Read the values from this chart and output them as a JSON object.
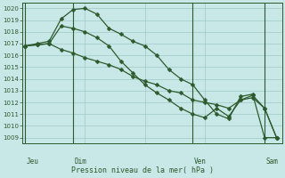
{
  "bg_color": "#c8e8e8",
  "grid_color": "#a0c8c8",
  "line_color": "#2d5a2d",
  "xlabel": "Pression niveau de la mer( hPa )",
  "ylim": [
    1008.5,
    1020.5
  ],
  "yticks": [
    1009,
    1010,
    1011,
    1012,
    1013,
    1014,
    1015,
    1016,
    1017,
    1018,
    1019,
    1020
  ],
  "day_labels": [
    "Jeu",
    "Dim",
    "Ven",
    "Sam"
  ],
  "series1_x": [
    0,
    2,
    4,
    6,
    8,
    10,
    12,
    14,
    16,
    18,
    20,
    22,
    24,
    26,
    28,
    30,
    32,
    34,
    36,
    38,
    40,
    42
  ],
  "series1_y": [
    1016.8,
    1017.0,
    1017.2,
    1019.1,
    1019.9,
    1020.0,
    1019.5,
    1018.3,
    1017.8,
    1017.2,
    1016.8,
    1016.0,
    1014.8,
    1014.0,
    1013.5,
    1012.2,
    1011.0,
    1010.6,
    1012.5,
    1012.7,
    1009.0,
    1009.0
  ],
  "series2_x": [
    0,
    2,
    4,
    6,
    8,
    10,
    12,
    14,
    16,
    18,
    20,
    22,
    24,
    26,
    28,
    30,
    32,
    34,
    36,
    38,
    40,
    42
  ],
  "series2_y": [
    1016.8,
    1016.9,
    1017.0,
    1018.5,
    1018.3,
    1018.0,
    1017.5,
    1016.8,
    1015.5,
    1014.5,
    1013.5,
    1012.8,
    1012.2,
    1011.5,
    1011.0,
    1010.7,
    1011.5,
    1010.8,
    1012.2,
    1012.6,
    1011.5,
    1009.0
  ],
  "series3_x": [
    0,
    2,
    4,
    6,
    8,
    10,
    12,
    14,
    16,
    18,
    20,
    22,
    24,
    26,
    28,
    30,
    32,
    34,
    36,
    38,
    40,
    42
  ],
  "series3_y": [
    1016.8,
    1016.9,
    1017.0,
    1016.5,
    1016.2,
    1015.8,
    1015.5,
    1015.2,
    1014.8,
    1014.2,
    1013.8,
    1013.5,
    1013.0,
    1012.8,
    1012.2,
    1012.0,
    1011.8,
    1011.5,
    1012.2,
    1012.4,
    1011.5,
    1009.0
  ],
  "vline_x": [
    0,
    8,
    28,
    40
  ],
  "xlim": [
    -0.5,
    43
  ]
}
